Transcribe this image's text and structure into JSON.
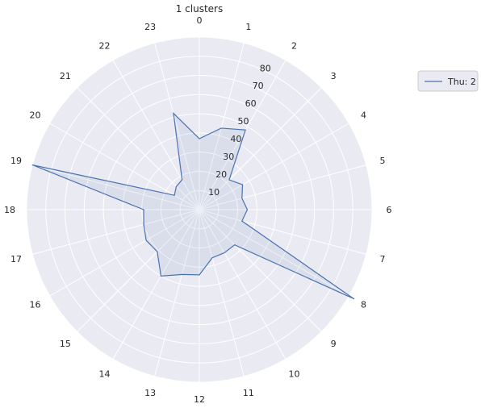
{
  "chart_data": {
    "type": "radar",
    "title": "1 clusters",
    "categories": [
      "0",
      "1",
      "2",
      "3",
      "4",
      "5",
      "6",
      "7",
      "8",
      "9",
      "10",
      "11",
      "12",
      "13",
      "14",
      "15",
      "16",
      "17",
      "18",
      "19",
      "20",
      "21",
      "22",
      "23"
    ],
    "radial_ticks": [
      10,
      20,
      30,
      40,
      50,
      60,
      70,
      80
    ],
    "rlim": [
      0,
      90
    ],
    "grid": true,
    "legend_position": "upper-right-outside",
    "series": [
      {
        "name": "Thu: 2",
        "color": "#4c72b0",
        "values": [
          37,
          44,
          48,
          22,
          26,
          23,
          25,
          23,
          93,
          26,
          26,
          26,
          34,
          35,
          40,
          31,
          32,
          30,
          29,
          90,
          15,
          17,
          18,
          52
        ]
      }
    ],
    "colors": {
      "plot_background": "#eaeaf2",
      "grid": "#ffffff",
      "text": "#262626"
    }
  }
}
